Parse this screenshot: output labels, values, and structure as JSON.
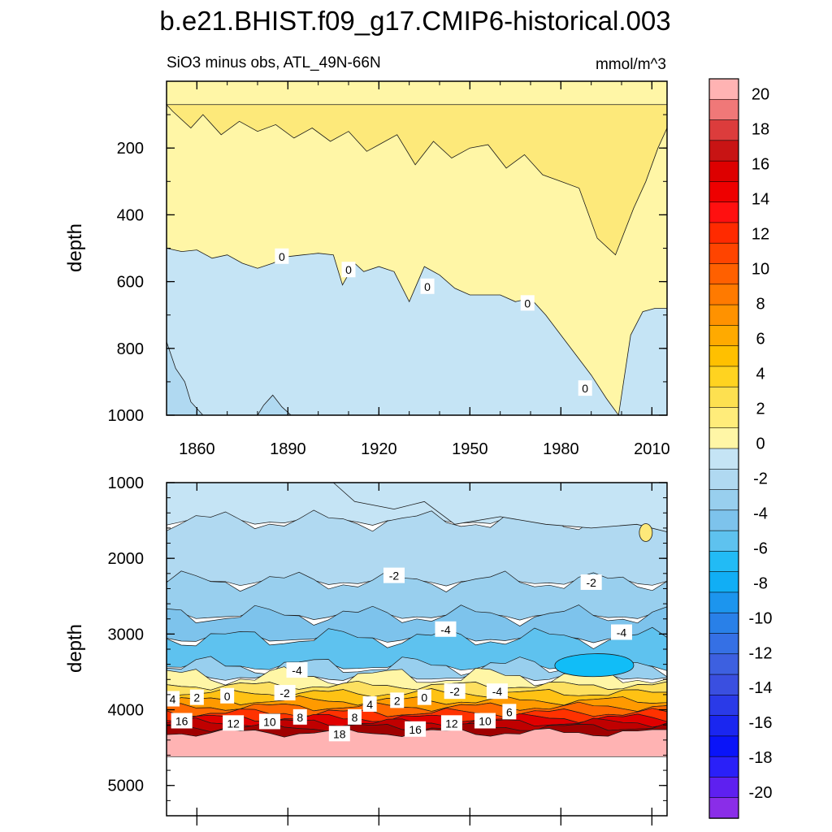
{
  "figure_title": "b.e21.BHIST.f09_g17.CMIP6-historical.003",
  "panel_left_title": "SiO3 minus obs, ATL_49N-66N",
  "units": "mmol/m^3",
  "colors": {
    "negative_fill": "#c5e4f5",
    "positive_fill": "#fff6a6",
    "positive_fill_2": "#fde97a",
    "line": "#1a1a1a"
  },
  "chart_data": [
    {
      "type": "contour",
      "panel": "top",
      "ylabel": "depth",
      "x_range": [
        1850,
        2015
      ],
      "y_range": [
        0,
        1000
      ],
      "y_reversed": true,
      "x_ticks": [
        1860,
        1890,
        1920,
        1950,
        1980,
        2010
      ],
      "y_ticks": [
        200,
        400,
        600,
        800,
        1000
      ],
      "zero_contour": {
        "years": [
          1850,
          1855,
          1860,
          1865,
          1870,
          1875,
          1880,
          1885,
          1890,
          1895,
          1900,
          1905,
          1908,
          1912,
          1915,
          1920,
          1925,
          1930,
          1935,
          1940,
          1945,
          1950,
          1955,
          1960,
          1965,
          1970,
          1975,
          1980,
          1985,
          1990,
          1995,
          1999,
          2003,
          2007,
          2011,
          2015
        ],
        "depths": [
          500,
          510,
          505,
          530,
          520,
          545,
          560,
          545,
          525,
          520,
          515,
          520,
          610,
          545,
          570,
          555,
          570,
          660,
          555,
          580,
          620,
          640,
          640,
          640,
          660,
          650,
          700,
          760,
          820,
          880,
          950,
          1000,
          760,
          690,
          680,
          680
        ]
      },
      "contour_labels": [
        {
          "text": "0",
          "x": 1888,
          "y": 525
        },
        {
          "text": "0",
          "x": 1910,
          "y": 565
        },
        {
          "text": "0",
          "x": 1936,
          "y": 615
        },
        {
          "text": "0",
          "x": 1969,
          "y": 665
        },
        {
          "text": "0",
          "x": 1988,
          "y": 920
        }
      ]
    },
    {
      "type": "contour",
      "panel": "bottom",
      "ylabel": "depth",
      "x_range": [
        1850,
        2015
      ],
      "y_range": [
        1000,
        5400
      ],
      "y_reversed": true,
      "y_ticks": [
        1000,
        2000,
        3000,
        4000,
        5000
      ],
      "data_bottom_depth": 4620,
      "bands": [
        {
          "top": 1000,
          "bottom": 1500,
          "level": "-0 to -1",
          "color": "#c5e4f5"
        },
        {
          "top": 1500,
          "bottom": 2300,
          "level": "-1 to -2",
          "color": "#b0d9f1"
        },
        {
          "top": 2300,
          "bottom": 2750,
          "level": "-2 to -3",
          "color": "#98cfee"
        },
        {
          "top": 2750,
          "bottom": 3050,
          "level": "-3 to -4",
          "color": "#7dc3ec"
        },
        {
          "top": 3050,
          "bottom": 3420,
          "level": "-4 to -5",
          "color": "#5ec2ef"
        },
        {
          "top": 3420,
          "bottom": 3560,
          "level": "-3 to -1",
          "color": "#98cfee"
        },
        {
          "top": 3560,
          "bottom": 3680,
          "level": "0 to 2",
          "color": "#fff6a6"
        },
        {
          "top": 3680,
          "bottom": 3780,
          "level": "2 to 4",
          "color": "#fde060"
        },
        {
          "top": 3780,
          "bottom": 3880,
          "level": "4 to 6",
          "color": "#ffc214"
        },
        {
          "top": 3880,
          "bottom": 3960,
          "level": "6 to 8",
          "color": "#ff9a00"
        },
        {
          "top": 3960,
          "bottom": 4040,
          "level": "8 to 10",
          "color": "#ff6a00"
        },
        {
          "top": 4040,
          "bottom": 4110,
          "level": "10 to 12",
          "color": "#ff3200"
        },
        {
          "top": 4110,
          "bottom": 4170,
          "level": "12 to 14",
          "color": "#e00000"
        },
        {
          "top": 4170,
          "bottom": 4230,
          "level": "14 to 16",
          "color": "#c00000"
        },
        {
          "top": 4230,
          "bottom": 4300,
          "level": "16 to 18",
          "color": "#a00000"
        },
        {
          "top": 4300,
          "bottom": 4620,
          "level": "> 20",
          "color": "#ffb3b3"
        }
      ],
      "core_minimum": {
        "x_from": 1978,
        "x_to": 2004,
        "depth_top": 3230,
        "depth_bottom": 3600,
        "level": "-6 to -5",
        "color": "#11bdf7"
      },
      "contour_labels": [
        {
          "text": "-2",
          "x": 1925,
          "y": 2230
        },
        {
          "text": "-2",
          "x": 1990,
          "y": 2320
        },
        {
          "text": "-4",
          "x": 1942,
          "y": 2940
        },
        {
          "text": "-4",
          "x": 2000,
          "y": 2980
        },
        {
          "text": "-4",
          "x": 1893,
          "y": 3480
        },
        {
          "text": "4",
          "x": 1852,
          "y": 3860
        },
        {
          "text": "2",
          "x": 1860,
          "y": 3840
        },
        {
          "text": "0",
          "x": 1870,
          "y": 3820
        },
        {
          "text": "-2",
          "x": 1889,
          "y": 3780
        },
        {
          "text": "4",
          "x": 1917,
          "y": 3930
        },
        {
          "text": "2",
          "x": 1926,
          "y": 3880
        },
        {
          "text": "0",
          "x": 1935,
          "y": 3840
        },
        {
          "text": "-2",
          "x": 1945,
          "y": 3760
        },
        {
          "text": "-4",
          "x": 1959,
          "y": 3760
        },
        {
          "text": "6",
          "x": 1963,
          "y": 4030
        },
        {
          "text": "16",
          "x": 1855,
          "y": 4150
        },
        {
          "text": "12",
          "x": 1872,
          "y": 4180
        },
        {
          "text": "10",
          "x": 1884,
          "y": 4160
        },
        {
          "text": "8",
          "x": 1894,
          "y": 4100
        },
        {
          "text": "8",
          "x": 1912,
          "y": 4100
        },
        {
          "text": "18",
          "x": 1907,
          "y": 4320
        },
        {
          "text": "16",
          "x": 1932,
          "y": 4260
        },
        {
          "text": "12",
          "x": 1944,
          "y": 4180
        },
        {
          "text": "10",
          "x": 1955,
          "y": 4150
        }
      ]
    }
  ],
  "colorbar": {
    "tick_labels": [
      "20",
      "18",
      "16",
      "14",
      "12",
      "10",
      "8",
      "6",
      "4",
      "2",
      "0",
      "-2",
      "-4",
      "-6",
      "-8",
      "-10",
      "-12",
      "-14",
      "-16",
      "-18",
      "-20"
    ],
    "colors": [
      "#ffb3b3",
      "#f07878",
      "#dc3c3c",
      "#c81414",
      "#dd0000",
      "#ee0000",
      "#ff1010",
      "#ff2a00",
      "#ff4400",
      "#ff6000",
      "#ff7a00",
      "#ff9200",
      "#ffaa00",
      "#ffc000",
      "#ffd320",
      "#fde050",
      "#ffec7a",
      "#fff6a6",
      "#c5e4f5",
      "#b0d9f1",
      "#98cfee",
      "#7dc3ec",
      "#5ec2ef",
      "#22bbf5",
      "#11aef5",
      "#1c95ee",
      "#2980e8",
      "#3570e5",
      "#3d60e0",
      "#3a4fe0",
      "#2a3ae8",
      "#1a26f0",
      "#0a14f8",
      "#2a20f8",
      "#5e20f0",
      "#8a2de8"
    ]
  }
}
